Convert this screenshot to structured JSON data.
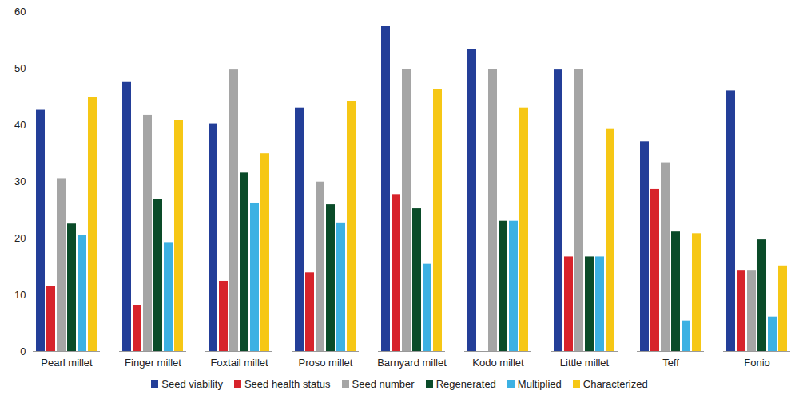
{
  "chart_data": {
    "type": "bar",
    "categories": [
      "Pearl millet",
      "Finger millet",
      "Foxtail millet",
      "Proso millet",
      "Barnyard millet",
      "Kodo millet",
      "Little millet",
      "Teff",
      "Fonio"
    ],
    "series": [
      {
        "name": "Seed viability",
        "color": "#233e98",
        "values": [
          42.6,
          47.5,
          40.2,
          43.0,
          57.4,
          53.3,
          49.7,
          37.0,
          46.0
        ]
      },
      {
        "name": "Seed health status",
        "color": "#d7232b",
        "values": [
          11.5,
          8.1,
          12.4,
          13.9,
          27.7,
          0,
          16.7,
          28.6,
          14.2
        ]
      },
      {
        "name": "Seed number",
        "color": "#a5a5a5",
        "values": [
          30.5,
          41.7,
          49.7,
          29.9,
          49.8,
          49.8,
          49.8,
          33.3,
          14.2
        ]
      },
      {
        "name": "Regenerated",
        "color": "#0a4b29",
        "values": [
          22.5,
          26.8,
          31.5,
          25.9,
          25.2,
          23.0,
          16.7,
          21.1,
          19.7
        ]
      },
      {
        "name": "Multiplied",
        "color": "#3cb1e3",
        "values": [
          20.5,
          19.1,
          26.2,
          22.7,
          15.4,
          23.0,
          16.7,
          5.4,
          6.1
        ]
      },
      {
        "name": "Characterized",
        "color": "#f6c715",
        "values": [
          44.8,
          40.8,
          34.9,
          44.2,
          46.2,
          43.0,
          39.2,
          20.8,
          15.1
        ]
      }
    ],
    "ylim": [
      0,
      60
    ],
    "yticks": [
      0,
      10,
      20,
      30,
      40,
      50,
      60
    ],
    "grid": false,
    "legend": "bottom"
  }
}
